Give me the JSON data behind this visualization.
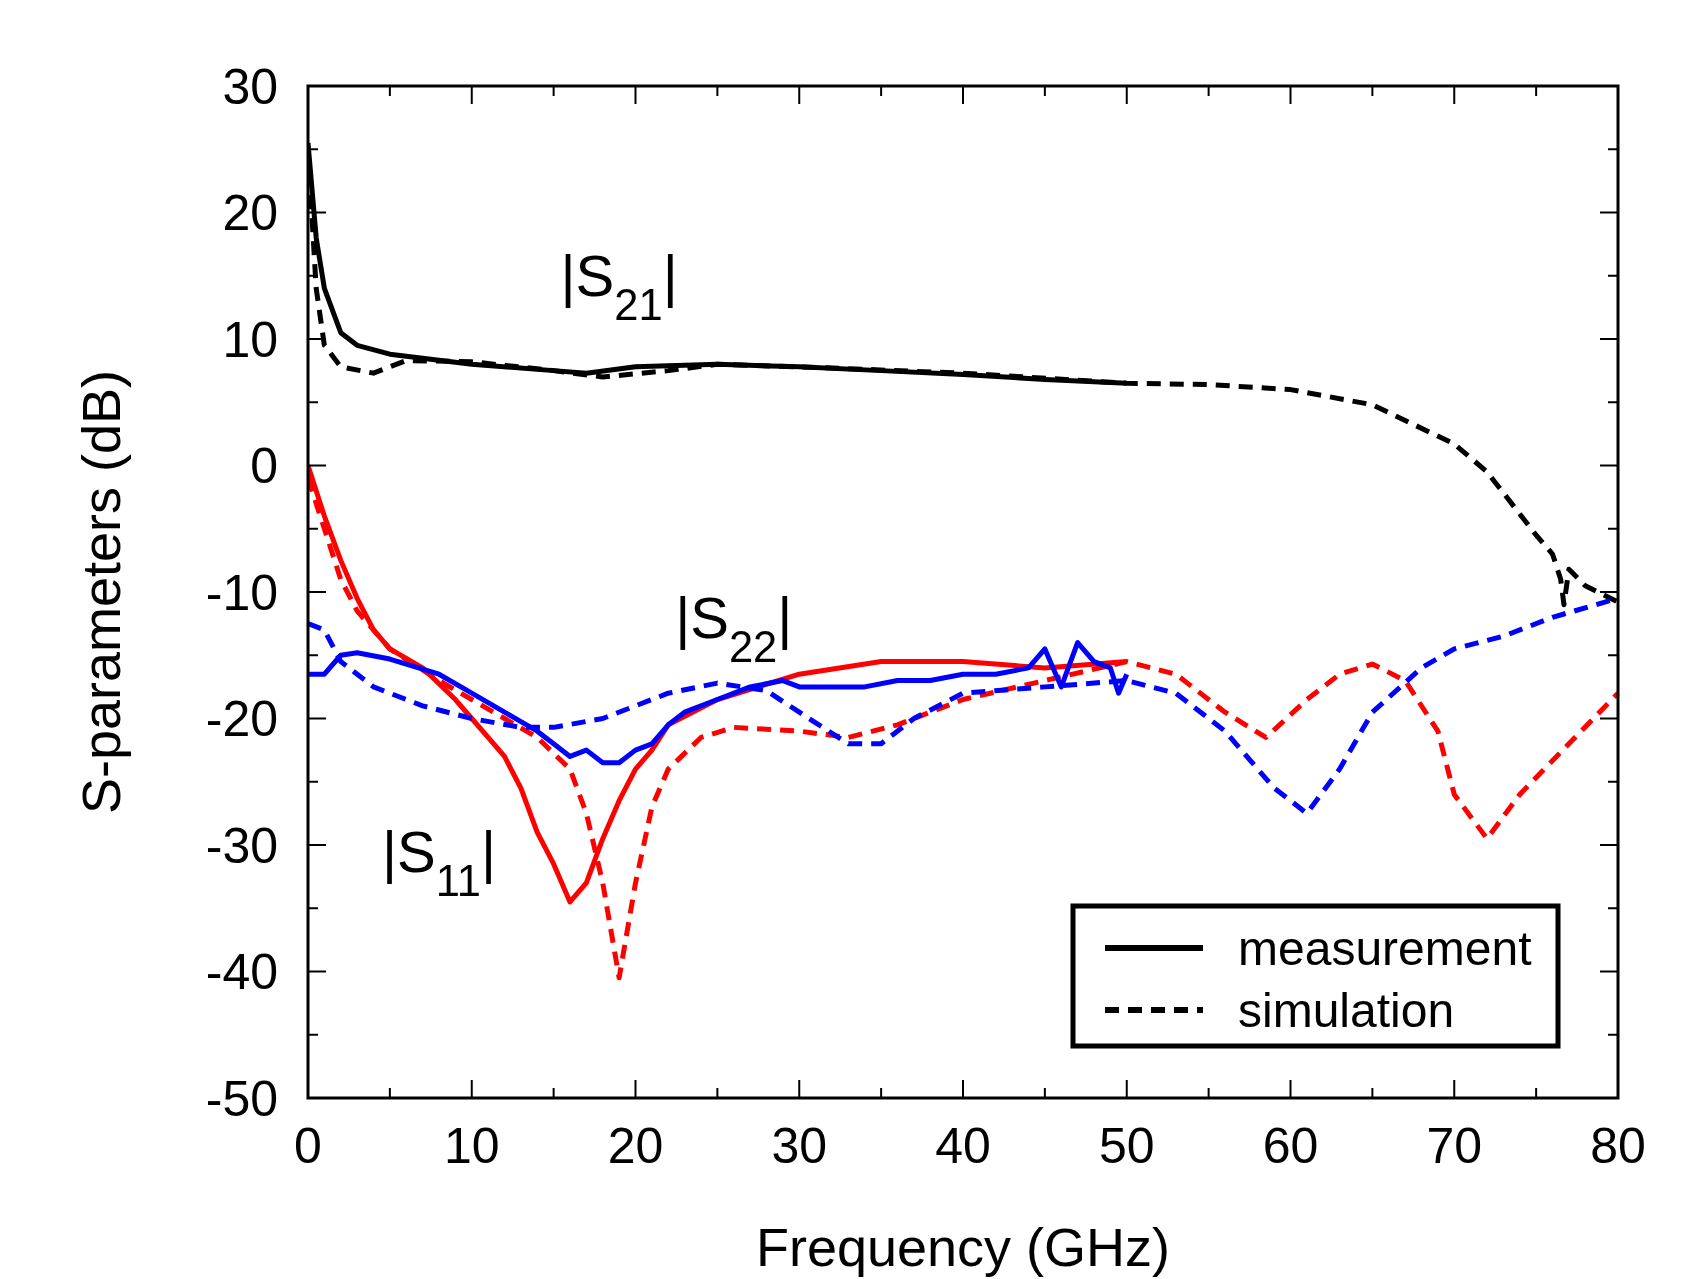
{
  "chart_data": {
    "type": "line",
    "xlabel": "Frequency (GHz)",
    "ylabel": "S-parameters (dB)",
    "xlim": [
      0,
      80
    ],
    "ylim": [
      -50,
      30
    ],
    "xticks": [
      0,
      {
        "value": 5,
        "label": null
      },
      10,
      {
        "value": 15,
        "label": null
      },
      20,
      {
        "value": 25,
        "label": null
      },
      30,
      {
        "value": 35,
        "label": null
      },
      40,
      {
        "value": 45,
        "label": null
      },
      50,
      {
        "value": 55,
        "label": null
      },
      60,
      {
        "value": 65,
        "label": null
      },
      70,
      {
        "value": 75,
        "label": null
      },
      80
    ],
    "yticks": [
      -50,
      {
        "value": -45,
        "label": null
      },
      -40,
      {
        "value": -35,
        "label": null
      },
      -30,
      {
        "value": -25,
        "label": null
      },
      -20,
      {
        "value": -15,
        "label": null
      },
      -10,
      {
        "value": -5,
        "label": null
      },
      0,
      {
        "value": 5,
        "label": null
      },
      10,
      {
        "value": 15,
        "label": null
      },
      20,
      {
        "value": 25,
        "label": null
      },
      30
    ],
    "grid": false,
    "legend": "bottom right",
    "series": [
      {
        "name": "measurement",
        "color": "#000000",
        "line_style": "solid",
        "x": [
          0,
          0.5,
          1,
          2,
          3,
          5,
          10,
          15,
          17,
          20,
          25,
          30,
          35,
          40,
          45,
          50
        ],
        "values": [
          25.5,
          18,
          14,
          10.5,
          9.5,
          8.8,
          8,
          7.5,
          7.3,
          7.8,
          8,
          7.8,
          7.5,
          7.2,
          6.8,
          6.5
        ]
      },
      {
        "name": "simulation",
        "color": "#000000",
        "line_style": "dashed",
        "x": [
          0,
          0.5,
          1,
          2,
          4,
          6,
          10,
          15,
          18,
          22,
          25,
          30,
          40,
          50,
          55,
          60,
          65,
          70,
          72,
          75,
          76,
          76.5,
          76.7,
          77,
          78,
          80
        ],
        "values": [
          25,
          14,
          9.5,
          7.8,
          7.3,
          8.3,
          8.2,
          7.5,
          7,
          7.5,
          8,
          7.8,
          7.3,
          6.5,
          6.4,
          6,
          4.8,
          1.7,
          -0.5,
          -5.5,
          -7,
          -9,
          -11,
          -8.2,
          -9.5,
          -10.8
        ]
      },
      {
        "color": "#ff0000",
        "line_style": "solid",
        "x": [
          0,
          1,
          2,
          3,
          4,
          5,
          7,
          9,
          10,
          11,
          12,
          13,
          14,
          15,
          16,
          17,
          18,
          19,
          20,
          21,
          22,
          25,
          30,
          35,
          40,
          45,
          50
        ],
        "values": [
          0,
          -4,
          -7.5,
          -10.5,
          -13,
          -14.5,
          -16,
          -18.5,
          -20,
          -21.5,
          -23,
          -25.5,
          -29,
          -31.5,
          -34.5,
          -33,
          -29.5,
          -26.5,
          -24,
          -22.5,
          -20.5,
          -18.5,
          -16.5,
          -15.5,
          -15.5,
          -16,
          -15.5
        ]
      },
      {
        "color": "#ff0000",
        "line_style": "dashed",
        "x": [
          0,
          1,
          2,
          3,
          5,
          8,
          10,
          12,
          14,
          16,
          17,
          18,
          19,
          20,
          21,
          22,
          24,
          26,
          30,
          33,
          36,
          40,
          45,
          50,
          53,
          56,
          58.5,
          61,
          63,
          65,
          67,
          69,
          70,
          72,
          74,
          77,
          80
        ],
        "values": [
          -1,
          -5,
          -9,
          -11.5,
          -14.5,
          -17,
          -18.5,
          -20,
          -21.5,
          -24,
          -27.5,
          -33,
          -40.5,
          -33,
          -27,
          -24,
          -21.5,
          -20.7,
          -21,
          -21.5,
          -20.5,
          -18.5,
          -17,
          -15.5,
          -16.5,
          -19.5,
          -21.5,
          -18.5,
          -16.5,
          -15.7,
          -17,
          -21,
          -26,
          -29.5,
          -26,
          -22,
          -18
        ]
      },
      {
        "color": "#0000ff",
        "line_style": "solid",
        "x": [
          0,
          1,
          2,
          3,
          5,
          8,
          10,
          12,
          14,
          15,
          16,
          17,
          18,
          19,
          20,
          21,
          22,
          23,
          25,
          27,
          29,
          30,
          32,
          34,
          36,
          38,
          40,
          42,
          44,
          45,
          46,
          47,
          48,
          49,
          49.5,
          50
        ],
        "values": [
          -16.5,
          -16.5,
          -15,
          -14.8,
          -15.3,
          -16.5,
          -18,
          -19.5,
          -21,
          -22,
          -23,
          -22.5,
          -23.5,
          -23.5,
          -22.5,
          -22,
          -20.5,
          -19.5,
          -18.5,
          -17.5,
          -17,
          -17.5,
          -17.5,
          -17.5,
          -17,
          -17,
          -16.5,
          -16.5,
          -16,
          -14.5,
          -17.5,
          -14,
          -15.5,
          -16,
          -18,
          -16.5
        ]
      },
      {
        "color": "#0000ff",
        "line_style": "dashed",
        "x": [
          0,
          1,
          2,
          4,
          7,
          10,
          13,
          15,
          18,
          22,
          25,
          28,
          30,
          33,
          35,
          37,
          40,
          45,
          50,
          53,
          56,
          59,
          61,
          63,
          65,
          68,
          70,
          73,
          76,
          80
        ],
        "values": [
          -12.5,
          -13,
          -15.5,
          -17.5,
          -19,
          -20,
          -20.7,
          -20.7,
          -20,
          -18,
          -17.2,
          -17.8,
          -19.5,
          -22,
          -22,
          -20,
          -18,
          -17.5,
          -17,
          -18,
          -21,
          -25.5,
          -27.5,
          -24,
          -19.5,
          -16,
          -14.5,
          -13.5,
          -12,
          -10.5
        ]
      }
    ],
    "annotations": [
      "|S$_{21}$|",
      "|S$_{22}$|",
      "|S$_{11}$|"
    ]
  }
}
